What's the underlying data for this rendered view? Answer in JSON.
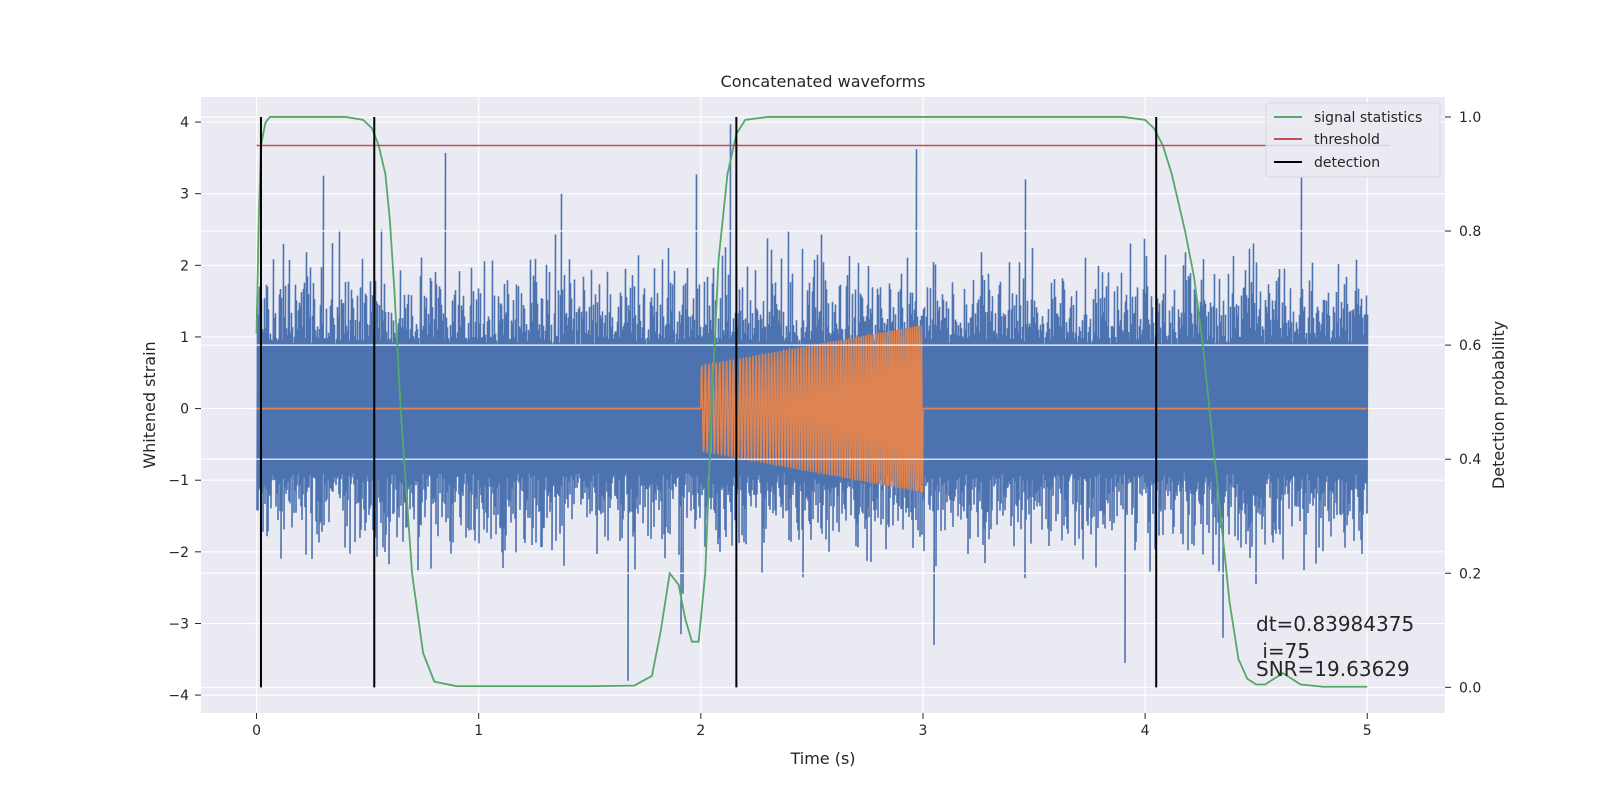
{
  "chart_data": {
    "type": "line",
    "title": "Concatenated waveforms",
    "xlabel": "Time (s)",
    "ylabel_left": "Whitened strain",
    "ylabel_right": "Detection probability",
    "xlim": [
      -0.25,
      5.35
    ],
    "ylim_left": [
      -4.25,
      4.35
    ],
    "ylim_right": [
      -0.045,
      1.035
    ],
    "x_ticks": [
      0,
      1,
      2,
      3,
      4,
      5
    ],
    "y_left_ticks": [
      -4,
      -3,
      -2,
      -1,
      0,
      1,
      2,
      3,
      4
    ],
    "y_right_ticks": [
      0.0,
      0.2,
      0.4,
      0.6,
      0.8,
      1.0
    ],
    "x_tick_labels": [
      "0",
      "1",
      "2",
      "3",
      "4",
      "5"
    ],
    "y_left_tick_labels": [
      "−4",
      "−3",
      "−2",
      "−1",
      "0",
      "1",
      "2",
      "3",
      "4"
    ],
    "y_right_tick_labels": [
      "0.0",
      "0.2",
      "0.4",
      "0.6",
      "0.8",
      "1.0"
    ],
    "grid": true,
    "legend_position": "top-right",
    "colors": {
      "strain": "#4c72b0",
      "injection": "#dd8452",
      "signal_statistics": "#55a868",
      "threshold": "#c44e52",
      "detection": "#000000",
      "background": "#eaeaf2",
      "grid": "#ffffff"
    },
    "series": [
      {
        "name": "signal statistics",
        "axis": "right",
        "x": [
          0.0,
          0.01,
          0.02,
          0.04,
          0.06,
          0.1,
          0.2,
          0.3,
          0.4,
          0.48,
          0.52,
          0.55,
          0.58,
          0.6,
          0.62,
          0.65,
          0.7,
          0.75,
          0.8,
          0.9,
          1.2,
          1.5,
          1.7,
          1.78,
          1.82,
          1.86,
          1.9,
          1.93,
          1.96,
          1.99,
          2.02,
          2.05,
          2.08,
          2.12,
          2.16,
          2.2,
          2.3,
          2.5,
          3.0,
          3.5,
          3.9,
          4.0,
          4.04,
          4.08,
          4.12,
          4.18,
          4.22,
          4.26,
          4.3,
          4.34,
          4.38,
          4.42,
          4.46,
          4.5,
          4.54,
          4.58,
          4.62,
          4.66,
          4.7,
          4.8,
          5.0
        ],
        "y": [
          0.62,
          0.82,
          0.95,
          0.99,
          1.0,
          1.0,
          1.0,
          1.0,
          1.0,
          0.995,
          0.98,
          0.95,
          0.9,
          0.82,
          0.7,
          0.48,
          0.2,
          0.06,
          0.01,
          0.002,
          0.002,
          0.002,
          0.003,
          0.02,
          0.1,
          0.2,
          0.18,
          0.12,
          0.08,
          0.08,
          0.2,
          0.5,
          0.75,
          0.9,
          0.97,
          0.995,
          1.0,
          1.0,
          1.0,
          1.0,
          1.0,
          0.995,
          0.98,
          0.95,
          0.9,
          0.8,
          0.72,
          0.6,
          0.45,
          0.3,
          0.15,
          0.05,
          0.015,
          0.005,
          0.005,
          0.015,
          0.025,
          0.015,
          0.005,
          0.001,
          0.001
        ]
      },
      {
        "name": "threshold",
        "axis": "right",
        "x": [
          0.0,
          5.1
        ],
        "y": [
          0.95,
          0.95
        ]
      },
      {
        "name": "detection",
        "axis": "right",
        "type": "vlines",
        "x": [
          0.02,
          0.53,
          2.16,
          4.05
        ],
        "ymin": 0.0,
        "ymax": 1.0
      }
    ],
    "strain": {
      "axis": "left",
      "x_range": [
        0.0,
        5.0
      ],
      "core_amplitude": [
        -0.85,
        0.85
      ],
      "typical_max": 2.4,
      "extreme_peaks": [
        [
          0.01,
          1.7
        ],
        [
          0.3,
          3.25
        ],
        [
          0.56,
          2.5
        ],
        [
          0.85,
          3.57
        ],
        [
          1.37,
          3.0
        ],
        [
          1.67,
          -3.8
        ],
        [
          1.91,
          -3.15
        ],
        [
          1.98,
          3.27
        ],
        [
          2.13,
          3.97
        ],
        [
          2.97,
          3.62
        ],
        [
          3.05,
          -3.3
        ],
        [
          3.46,
          3.2
        ],
        [
          3.91,
          -3.55
        ],
        [
          4.35,
          -3.2
        ],
        [
          4.5,
          -2.45
        ],
        [
          4.7,
          3.24
        ]
      ]
    },
    "injection": {
      "axis": "left",
      "type": "chirp",
      "start": 2.0,
      "end": 3.0,
      "amplitude_start": 0.6,
      "amplitude_end": 1.17,
      "cycles": 60
    },
    "annotations": [
      "dt=0.83984375",
      " i=75",
      "SNR=19.63629"
    ]
  }
}
